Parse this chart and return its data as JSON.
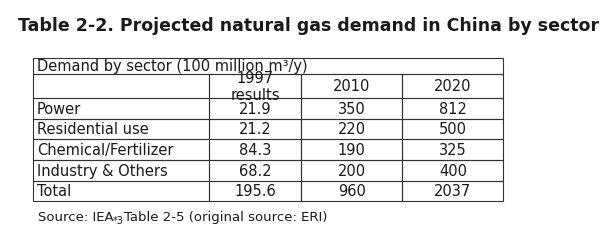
{
  "title": "Table 2-2. Projected natural gas demand in China by sector",
  "header_label": "Demand by sector (100 million m³/y)",
  "col_headers": [
    "",
    "1997\nresults",
    "2010",
    "2020"
  ],
  "rows": [
    [
      "Power",
      "21.9",
      "350",
      "812"
    ],
    [
      "Residential use",
      "21.2",
      "220",
      "500"
    ],
    [
      "Chemical/Fertilizer",
      "84.3",
      "190",
      "325"
    ],
    [
      "Industry & Others",
      "68.2",
      "200",
      "400"
    ],
    [
      "Total",
      "195.6",
      "960",
      "2037"
    ]
  ],
  "source_text": "Source: IEA",
  "source_superscript": "*3",
  "source_suffix": "Table 2-5 (original source: ERI)",
  "title_color": "#1a1a1a",
  "table_text_color": "#1a1a1a",
  "border_color": "#333333",
  "background_color": "#ffffff",
  "title_fontsize": 12.5,
  "cell_fontsize": 10.5,
  "source_fontsize": 9.5
}
